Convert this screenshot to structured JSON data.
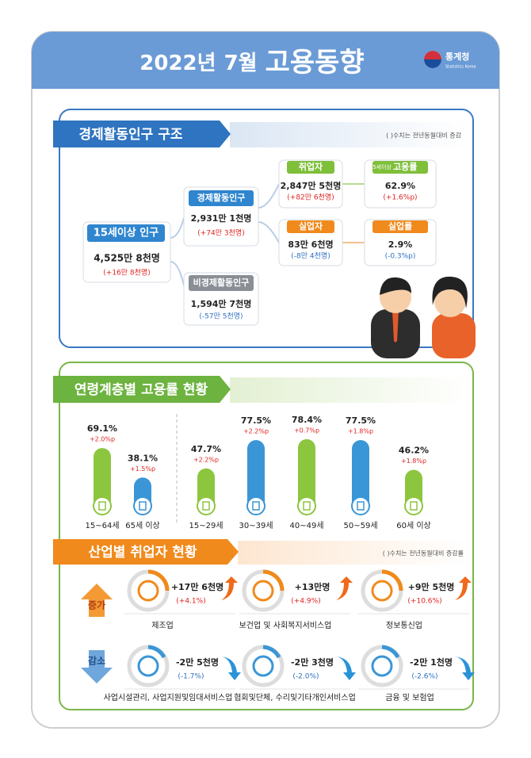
{
  "header": {
    "year": "2022년",
    "month": "7월",
    "title": "고용동향",
    "logo": "통계청",
    "logo_sub": "Statistics Korea"
  },
  "structure": {
    "title": "경제활동인구 구조",
    "note": "( )수치는 전년동월대비 증감",
    "nodes": [
      {
        "label": "15세이상 인구",
        "value": "4,525만 8천명",
        "change": "(+16만 8천명)"
      },
      {
        "label": "경제활동인구",
        "value": "2,931만 1천명",
        "change": "(+74만 3천명)"
      },
      {
        "label": "비경제활동인구",
        "value": "1,594만 7천명",
        "change": "(-57만 5천명)"
      },
      {
        "label": "취업자",
        "value": "2,847만 5천명",
        "change": "(+82만 6천명)"
      },
      {
        "label": "실업자",
        "value": "83만 6천명",
        "change": "(-8만 4천명)"
      },
      {
        "prefix": "15세이상",
        "label": "고용률",
        "value": "62.9%",
        "change": "(+1.6%p)"
      },
      {
        "label": "실업률",
        "value": "2.9%",
        "change": "(-0.3%p)"
      }
    ]
  },
  "age": {
    "title": "연령계층별 고용률 현황",
    "categories": [
      "15~64세",
      "65세 이상",
      "15~29세",
      "30~39세",
      "40~49세",
      "50~59세",
      "60세 이상"
    ],
    "values": [
      69.1,
      38.1,
      47.7,
      77.5,
      78.4,
      77.5,
      46.2
    ],
    "value_labels": [
      "69.1%",
      "38.1%",
      "47.7%",
      "77.5%",
      "78.4%",
      "77.5%",
      "46.2%"
    ],
    "changes": [
      "+2.0%p",
      "+1.5%p",
      "+2.2%p",
      "+2.2%p",
      "+0.7%p",
      "+1.8%p",
      "+1.8%p"
    ],
    "colors": [
      "#8cc63f",
      "#3a96d6",
      "#8cc63f",
      "#3a96d6",
      "#8cc63f",
      "#3a96d6",
      "#8cc63f"
    ]
  },
  "industry": {
    "title": "산업별 취업자 현황",
    "note": "( )수치는 전년동월대비 증감률",
    "increase_label": "증가",
    "decrease_label": "감소",
    "items": [
      {
        "name": "제조업",
        "change": "+17만 6천명",
        "rate": "(+4.1%)"
      },
      {
        "name": "보건업 및 사회복지서비스업",
        "change": "+13만명",
        "rate": "(+4.9%)"
      },
      {
        "name": "정보통신업",
        "change": "+9만 5천명",
        "rate": "(+10.6%)"
      },
      {
        "name": "사업시설관리, 사업지원및임대서비스업",
        "change": "-2만 5천명",
        "rate": "(-1.7%)"
      },
      {
        "name": "협회및단체, 수리및기타개인서비스업",
        "change": "-2만 3천명",
        "rate": "(-2.0%)"
      },
      {
        "name": "금융 및 보험업",
        "change": "-2만 1천명",
        "rate": "(-2.6%)"
      }
    ]
  }
}
